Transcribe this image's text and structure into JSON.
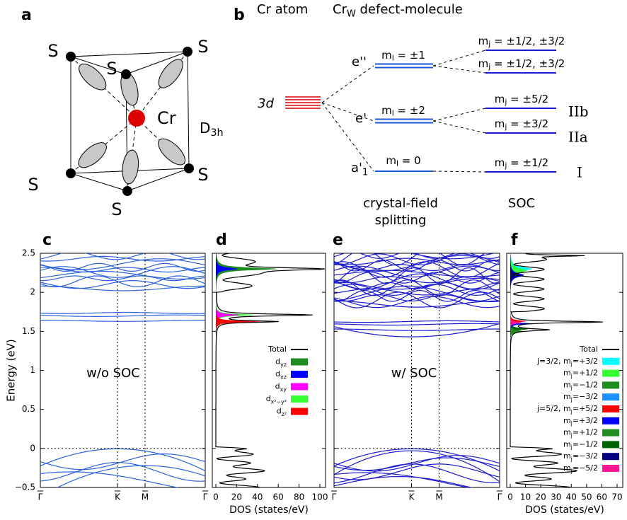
{
  "panel_labels": [
    "a",
    "b",
    "c",
    "d",
    "e",
    "f"
  ],
  "structure": {
    "sulfur_labels": [
      "S",
      "S",
      "S",
      "S",
      "S",
      "S"
    ],
    "metal": "Cr",
    "symmetry": {
      "main": "D",
      "sub": "3h"
    }
  },
  "levels": {
    "header_atom": "Cr atom",
    "header_molecule": {
      "main": "Cr",
      "sub": "W",
      "rest": " defect-molecule"
    },
    "atom_level": "3d",
    "crystal_field": [
      {
        "name": "e''",
        "m": {
          "main": "m",
          "sub": "l",
          "rest": " = ±1"
        }
      },
      {
        "name": "e'",
        "m": {
          "main": "m",
          "sub": "l",
          "rest": " = ±2"
        }
      },
      {
        "name": {
          "main": "a'",
          "sub": "1"
        },
        "m": {
          "main": "m",
          "sub": "l",
          "rest": " = 0"
        }
      }
    ],
    "soc": [
      {
        "main": "m",
        "sub": "j",
        "rest": " = ±1/2, ±3/2"
      },
      {
        "main": "m",
        "sub": "j",
        "rest": " = ±1/2, ±3/2"
      },
      {
        "main": "m",
        "sub": "j",
        "rest": " = ±5/2"
      },
      {
        "main": "m",
        "sub": "j",
        "rest": " = ±3/2"
      },
      {
        "main": "m",
        "sub": "j",
        "rest": " = ±1/2"
      }
    ],
    "soc_labels": [
      "IIb",
      "IIa",
      "I"
    ],
    "crystal_field_title": [
      "crystal-field",
      "splitting"
    ],
    "soc_title": "SOC"
  },
  "band_plots": {
    "y_label": "Energy (eV)",
    "y_ticks": [
      "2.5",
      "2",
      "1.5",
      "1",
      "0.5",
      "0",
      "−0.5"
    ],
    "k_points": [
      "Γ",
      "K",
      "M",
      "Γ"
    ],
    "without_soc": "w/o SOC",
    "with_soc": "w/ SOC"
  },
  "dos_plots": {
    "x_label": "DOS (states/eV)",
    "d_ticks": [
      "0",
      "20",
      "40",
      "60",
      "80",
      "100"
    ],
    "f_ticks": [
      "0",
      "10",
      "20",
      "30",
      "40",
      "50",
      "60",
      "70"
    ],
    "d_legend": [
      {
        "pre": "Total",
        "color": "#000000"
      },
      {
        "pre": "d",
        "sub": "yz",
        "color": "#1e8c1e"
      },
      {
        "pre": "d",
        "sub": "xz",
        "color": "#0000ff"
      },
      {
        "pre": "d",
        "sub": "xy",
        "color": "#ff00ff"
      },
      {
        "pre": "d",
        "sub": "x²−y²",
        "color": "#33ff33"
      },
      {
        "pre": "d",
        "sub": "z²",
        "color": "#ff0000"
      }
    ],
    "f_legend": [
      {
        "pre": "Total",
        "color": "#000000"
      },
      {
        "pre": "j=3/2, m",
        "sub": "j",
        "post": "=+3/2",
        "color": "#00ffff"
      },
      {
        "pre": "m",
        "sub": "j",
        "post": "=+1/2",
        "color": "#33ff33"
      },
      {
        "pre": "m",
        "sub": "j",
        "post": "=−1/2",
        "color": "#1e8c1e"
      },
      {
        "pre": "m",
        "sub": "j",
        "post": "=−3/2",
        "color": "#1e90ff"
      },
      {
        "pre": "j=5/2, m",
        "sub": "j",
        "post": "=+5/2",
        "color": "#ff0000"
      },
      {
        "pre": "m",
        "sub": "j",
        "post": "=+3/2",
        "color": "#0000ff"
      },
      {
        "pre": "m",
        "sub": "j",
        "post": "=+1/2",
        "color": "#228b22"
      },
      {
        "pre": "m",
        "sub": "j",
        "post": "=−1/2",
        "color": "#006400"
      },
      {
        "pre": "m",
        "sub": "j",
        "post": "=−3/2",
        "color": "#000080"
      },
      {
        "pre": "m",
        "sub": "j",
        "post": "=−5/2",
        "color": "#ff1493"
      }
    ]
  }
}
